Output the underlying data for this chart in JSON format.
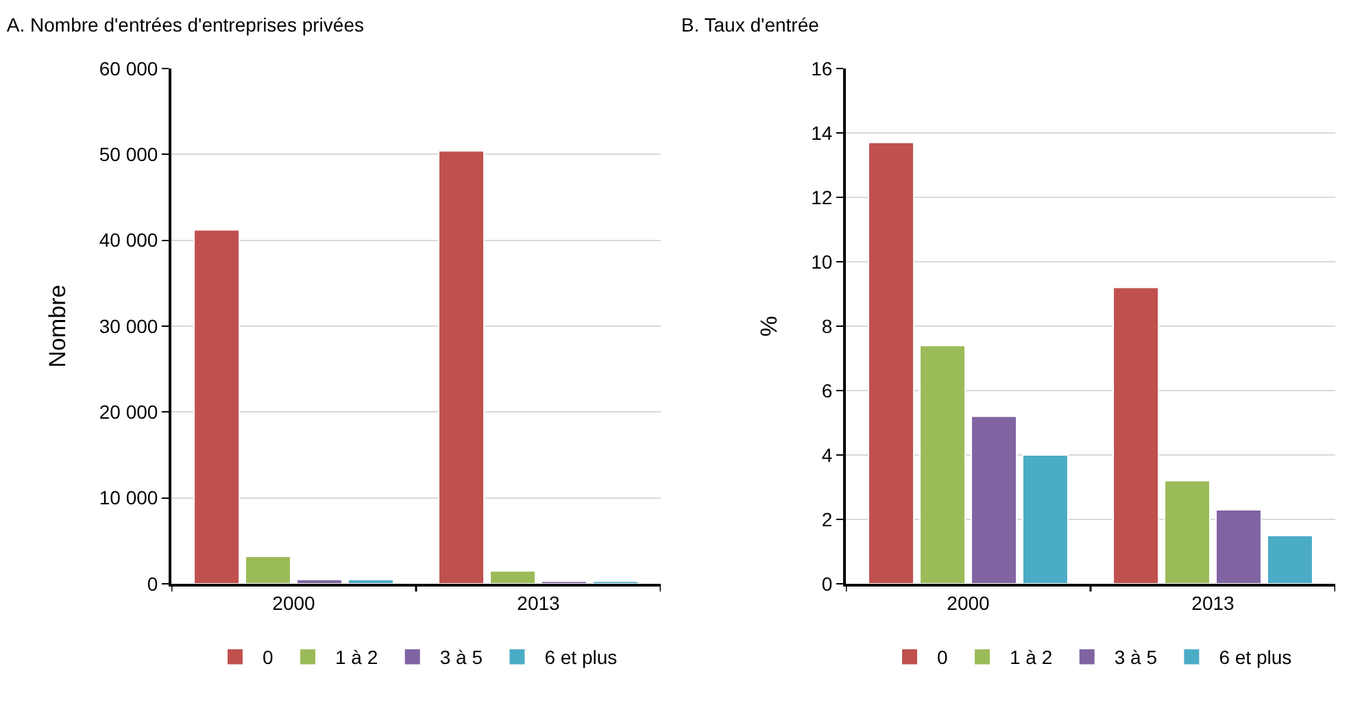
{
  "chart_data": [
    {
      "type": "bar",
      "title": "A. Nombre d'entrées d'entreprises privées",
      "ylabel": "Nombre",
      "categories": [
        "2000",
        "2013"
      ],
      "series": [
        {
          "name": "0",
          "color": "#c0504d",
          "values": [
            41200,
            50400
          ]
        },
        {
          "name": "1 à 2",
          "color": "#9bbb59",
          "values": [
            3200,
            1500
          ]
        },
        {
          "name": "3 à 5",
          "color": "#8064a2",
          "values": [
            500,
            300
          ]
        },
        {
          "name": "6 et plus",
          "color": "#4bacc6",
          "values": [
            500,
            300
          ]
        }
      ],
      "ylim": [
        0,
        60000
      ],
      "yticks": [
        0,
        {
          "value": 10000,
          "label": "10 000"
        },
        {
          "value": 20000,
          "label": "20 000"
        },
        {
          "value": 30000,
          "label": "30 000"
        },
        {
          "value": 40000,
          "label": "40 000"
        },
        {
          "value": 50000,
          "label": "50 000"
        },
        {
          "value": 60000,
          "label": "60 000"
        }
      ],
      "grid": "y",
      "legend": "bottom"
    },
    {
      "type": "bar",
      "title": "B. Taux d'entrée",
      "ylabel": "%",
      "categories": [
        "2000",
        "2013"
      ],
      "series": [
        {
          "name": "0",
          "color": "#c0504d",
          "values": [
            13.7,
            9.2
          ]
        },
        {
          "name": "1 à 2",
          "color": "#9bbb59",
          "values": [
            7.4,
            3.2
          ]
        },
        {
          "name": "3 à 5",
          "color": "#8064a2",
          "values": [
            5.2,
            2.3
          ]
        },
        {
          "name": "6 et plus",
          "color": "#4bacc6",
          "values": [
            4.0,
            1.5
          ]
        }
      ],
      "ylim": [
        0,
        16
      ],
      "yticks": [
        0,
        2,
        4,
        6,
        8,
        10,
        12,
        14,
        16
      ],
      "grid": "y",
      "legend": "bottom"
    }
  ]
}
